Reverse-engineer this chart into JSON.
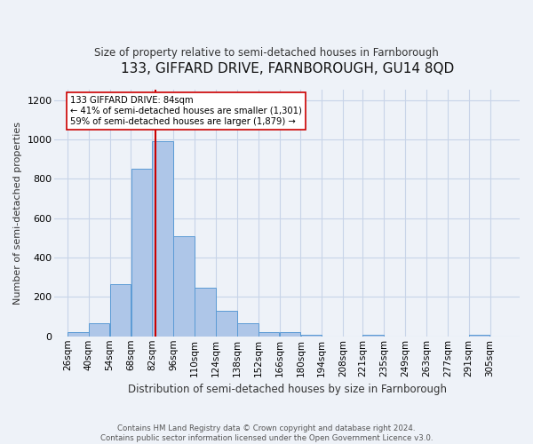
{
  "title": "133, GIFFARD DRIVE, FARNBOROUGH, GU14 8QD",
  "subtitle": "Size of property relative to semi-detached houses in Farnborough",
  "xlabel": "Distribution of semi-detached houses by size in Farnborough",
  "ylabel": "Number of semi-detached properties",
  "footer_line1": "Contains HM Land Registry data © Crown copyright and database right 2024.",
  "footer_line2": "Contains public sector information licensed under the Open Government Licence v3.0.",
  "bin_labels": [
    "26sqm",
    "40sqm",
    "54sqm",
    "68sqm",
    "82sqm",
    "96sqm",
    "110sqm",
    "124sqm",
    "138sqm",
    "152sqm",
    "166sqm",
    "180sqm",
    "194sqm",
    "208sqm",
    "221sqm",
    "235sqm",
    "249sqm",
    "263sqm",
    "277sqm",
    "291sqm",
    "305sqm"
  ],
  "bar_values": [
    20,
    65,
    265,
    850,
    990,
    510,
    245,
    130,
    65,
    22,
    22,
    10,
    0,
    0,
    10,
    0,
    0,
    0,
    0,
    10,
    0
  ],
  "bin_edges": [
    26,
    40,
    54,
    68,
    82,
    96,
    110,
    124,
    138,
    152,
    166,
    180,
    194,
    208,
    221,
    235,
    249,
    263,
    277,
    291,
    305
  ],
  "bar_color": "#aec6e8",
  "bar_edge_color": "#5b9bd5",
  "grid_color": "#c8d4e8",
  "property_size": 84,
  "property_line_color": "#cc0000",
  "annotation_text": "133 GIFFARD DRIVE: 84sqm\n← 41% of semi-detached houses are smaller (1,301)\n59% of semi-detached houses are larger (1,879) →",
  "annotation_box_color": "#ffffff",
  "annotation_box_edge": "#cc0000",
  "ylim": [
    0,
    1250
  ],
  "yticks": [
    0,
    200,
    400,
    600,
    800,
    1000,
    1200
  ],
  "background_color": "#eef2f8",
  "axes_bg_color": "#eef2f8"
}
